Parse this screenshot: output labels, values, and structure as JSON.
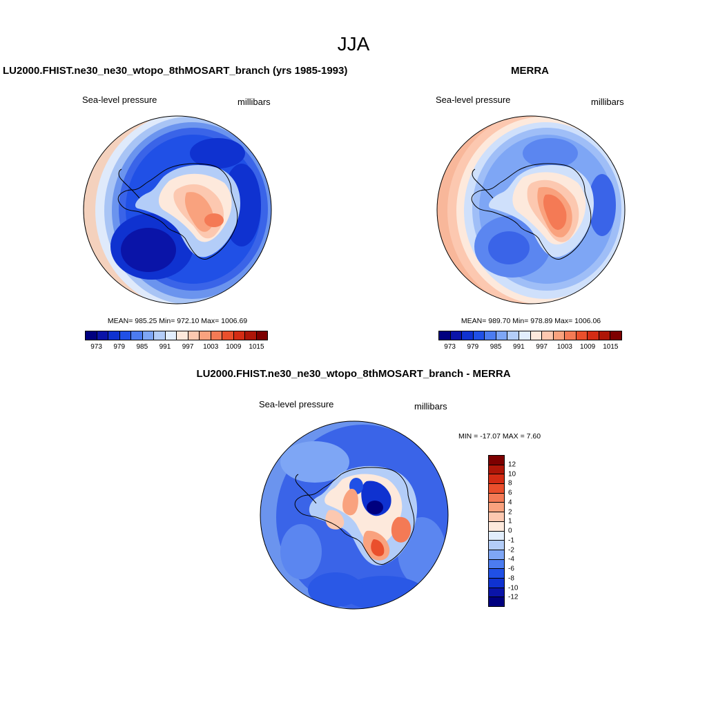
{
  "figure": {
    "title": "JJA"
  },
  "panel_model": {
    "title": "LU2000.FHIST.ne30_ne30_wtopo_8thMOSART_branch (yrs 1985-1993)",
    "variable": "Sea-level pressure",
    "units": "millibars",
    "stats": "MEAN= 985.25  Min= 972.10  Max= 1006.69"
  },
  "panel_obs": {
    "title": "MERRA",
    "variable": "Sea-level pressure",
    "units": "millibars",
    "stats": "MEAN= 989.70  Min= 978.89  Max= 1006.06"
  },
  "panel_diff": {
    "title": "LU2000.FHIST.ne30_ne30_wtopo_8thMOSART_branch - MERRA",
    "variable": "Sea-level pressure",
    "units": "millibars",
    "stats": "MIN = -17.07 MAX =   7.60"
  },
  "colorbar_abs": {
    "colors": [
      "#00007f",
      "#0a14a8",
      "#0f32d0",
      "#2050e6",
      "#4c7cf0",
      "#7ea6f5",
      "#b3cdf8",
      "#e2eefd",
      "#fde9dc",
      "#fcc8b0",
      "#f9a27e",
      "#f47a55",
      "#ea4f2c",
      "#d42c14",
      "#ae1608",
      "#7d0000"
    ],
    "labels": [
      "973",
      "979",
      "985",
      "991",
      "997",
      "1003",
      "1009",
      "1015"
    ]
  },
  "colorbar_diff": {
    "colors": [
      "#7d0000",
      "#ae1608",
      "#d42c14",
      "#ea4f2c",
      "#f47a55",
      "#f9a27e",
      "#fcc8b0",
      "#fde9dc",
      "#e2eefd",
      "#b3cdf8",
      "#7ea6f5",
      "#4c7cf0",
      "#2050e6",
      "#0f32d0",
      "#0a14a8",
      "#00007f"
    ],
    "labels": [
      "12",
      "10",
      "8",
      "6",
      "4",
      "2",
      "1",
      "0",
      "-1",
      "-2",
      "-4",
      "-6",
      "-8",
      "-10",
      "-12"
    ]
  }
}
